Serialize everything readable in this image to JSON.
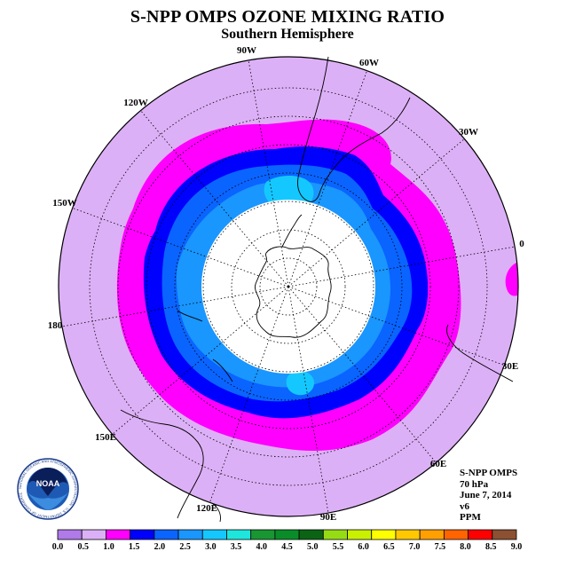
{
  "title": "S-NPP OMPS OZONE MIXING RATIO",
  "subtitle": "Southern Hemisphere",
  "longitude_labels": [
    "90W",
    "60W",
    "30W",
    "0",
    "30E",
    "60E",
    "90E",
    "120E",
    "150E",
    "180",
    "150W",
    "120W"
  ],
  "info": {
    "instrument": "S-NPP OMPS",
    "pressure": "70 hPa",
    "date": "June 7, 2014",
    "version": "v6",
    "unit": "PPM"
  },
  "logo": {
    "text": "NOAA",
    "ring_text": "NATIONAL OCEANIC AND ATMOSPHERIC ADMINISTRATION · U.S. DEPARTMENT OF COMMERCE"
  },
  "colorbar": {
    "labels": [
      "0.0",
      "0.5",
      "1.0",
      "1.5",
      "2.0",
      "2.5",
      "3.0",
      "3.5",
      "4.0",
      "4.5",
      "5.0",
      "5.5",
      "6.0",
      "6.5",
      "7.0",
      "7.5",
      "8.0",
      "8.5",
      "9.0"
    ],
    "colors": [
      "#b07ae8",
      "#dcb0f6",
      "#ff00ff",
      "#0000ff",
      "#0a64ff",
      "#1a96ff",
      "#14c8ff",
      "#1ee6dc",
      "#189632",
      "#0a8c28",
      "#0a6414",
      "#96dc14",
      "#c8f000",
      "#ffff00",
      "#ffc800",
      "#ffa000",
      "#ff6400",
      "#ff0000",
      "#8c5032"
    ]
  },
  "colors": {
    "outer": "#dcb0f6",
    "magenta": "#ff00ff",
    "blue": "#0000ff",
    "mid_blue": "#0a64ff",
    "light_blue": "#1a96ff",
    "cyan": "#14c8ff"
  }
}
